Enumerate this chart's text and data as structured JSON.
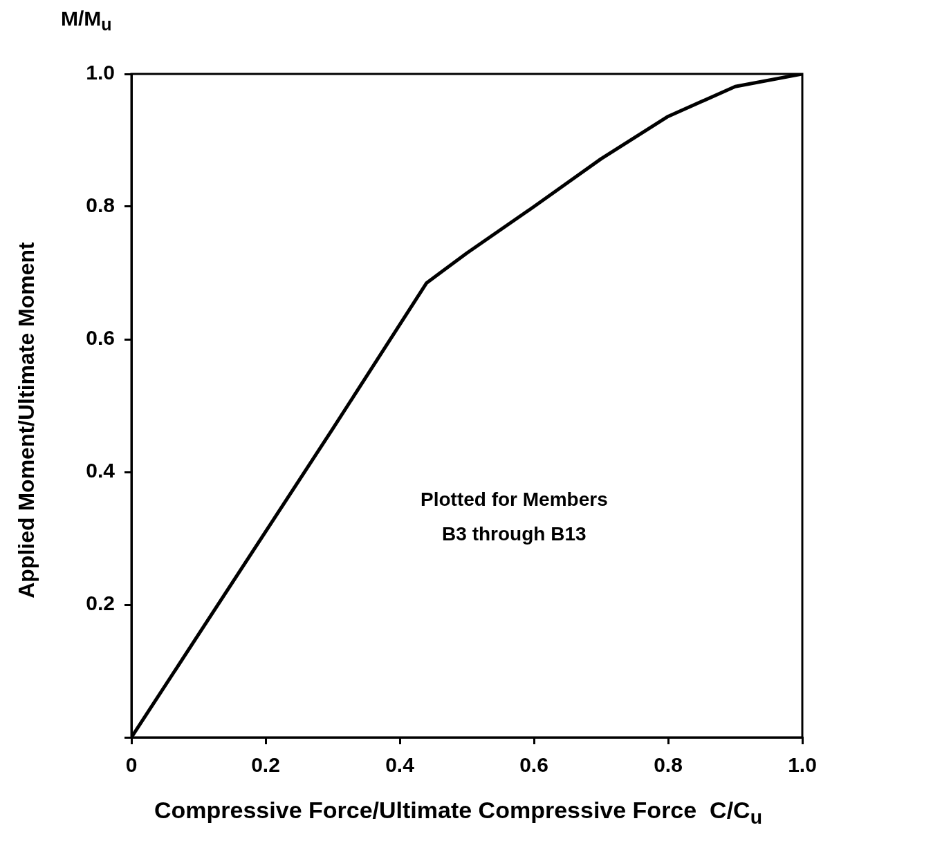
{
  "chart_data": {
    "type": "line",
    "xlabel": "Compressive Force/Ultimate Compressive Force  C/C$_{u}$",
    "ylabel": "Applied Moment/Ultimate Moment",
    "annotations": [
      "M/M$_{u}$",
      "Plotted for Members\nB3 through B13"
    ],
    "x": [
      0,
      0.1,
      0.2,
      0.3,
      0.44,
      0.46,
      0.5,
      0.6,
      0.7,
      0.8,
      0.9,
      1.0
    ],
    "series": [
      {
        "color": "#000000",
        "values": [
          0,
          0.155,
          0.31,
          0.465,
          0.685,
          0.7,
          0.73,
          0.8,
          0.872,
          0.936,
          0.981,
          1.0
        ]
      }
    ],
    "xlim": [
      0,
      1
    ],
    "ylim": [
      0,
      1
    ],
    "xticks": [
      0,
      0.2,
      0.4,
      0.6,
      0.8,
      {
        "value": 1,
        "label": "1.0"
      }
    ],
    "yticks": [
      {
        "value": 0,
        "label": null
      },
      0.2,
      0.4,
      0.6,
      0.8,
      {
        "value": 1,
        "label": "1.0"
      }
    ],
    "grid": false,
    "legend": false,
    "marker": "none",
    "line_style": "solid"
  }
}
